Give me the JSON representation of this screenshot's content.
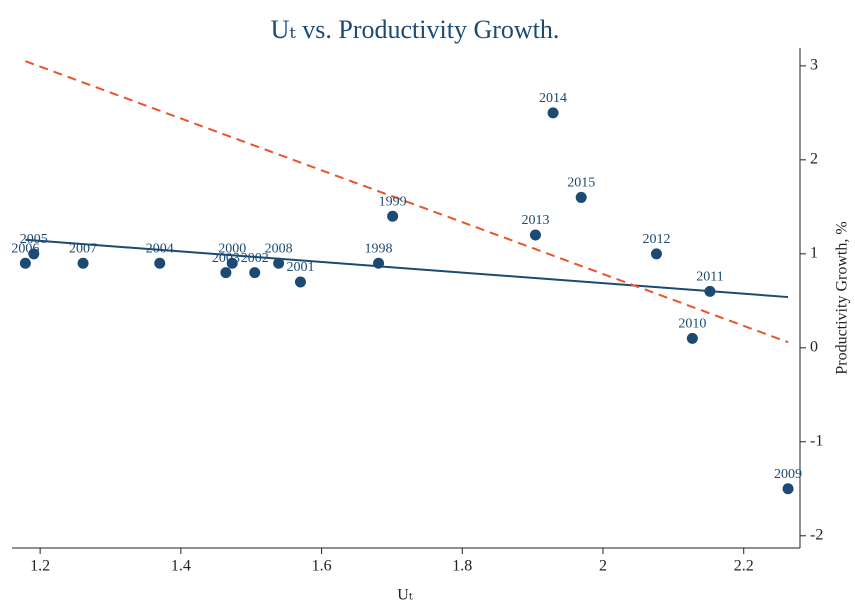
{
  "chart_data": {
    "type": "scatter",
    "title": "Uₜ vs. Productivity Growth.",
    "xlabel": "Uₜ",
    "ylabel": "Productivity Growth, %",
    "xlim": [
      1.16,
      2.28
    ],
    "ylim": [
      -2.13,
      3.19
    ],
    "xticks": [
      1.2,
      1.4,
      1.6,
      1.8,
      2,
      2.2
    ],
    "yticks": [
      -2,
      -1,
      0,
      1,
      2,
      3
    ],
    "points": {
      "color": "#1c4a72",
      "labels": [
        "2006",
        "2005",
        "2007",
        "2004",
        "2003",
        "2000",
        "2002",
        "2008",
        "2001",
        "1998",
        "1999",
        "2013",
        "2014",
        "2015",
        "2012",
        "2011",
        "2010",
        "2009"
      ],
      "x": [
        1.179,
        1.191,
        1.261,
        1.37,
        1.464,
        1.473,
        1.505,
        1.539,
        1.57,
        1.681,
        1.701,
        1.904,
        1.929,
        1.969,
        2.076,
        2.152,
        2.127,
        2.263
      ],
      "values": [
        0.9,
        1.0,
        0.9,
        0.9,
        0.8,
        0.9,
        0.8,
        0.9,
        0.7,
        0.9,
        1.4,
        1.2,
        2.5,
        1.6,
        1.0,
        0.6,
        0.1,
        -1.5
      ]
    },
    "lines": [
      {
        "color": "#1c4a72",
        "dashed": false,
        "x": [
          1.179,
          2.263
        ],
        "values": [
          1.15,
          0.54
        ]
      },
      {
        "color": "#e8552a",
        "dashed": true,
        "x": [
          1.179,
          2.263
        ],
        "values": [
          3.05,
          0.06
        ]
      }
    ]
  }
}
